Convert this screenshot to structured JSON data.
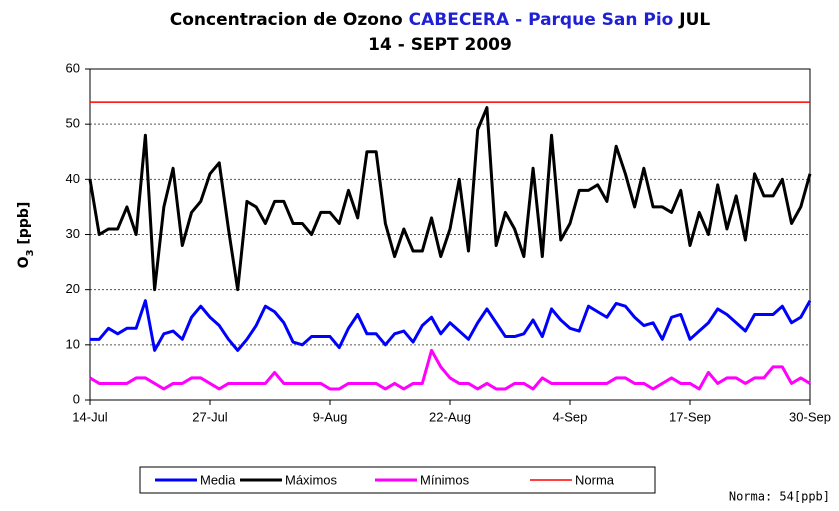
{
  "chart_data": {
    "type": "line",
    "title_parts": [
      "Concentracion de Ozono ",
      "CABECERA - Parque San Pio",
      " JUL",
      "14 - SEPT 2009"
    ],
    "title_colors": [
      "#000000",
      "#1f1fd6",
      "#000000",
      "#000000"
    ],
    "y_label_parts": [
      "O",
      "3",
      " [ppb]"
    ],
    "annotation": "Norma: 54[ppb]",
    "categories": [
      "14-Jul",
      null,
      null,
      null,
      null,
      null,
      null,
      null,
      null,
      null,
      null,
      null,
      null,
      "27-Jul",
      null,
      null,
      null,
      null,
      null,
      null,
      null,
      null,
      null,
      null,
      null,
      null,
      "9-Aug",
      null,
      null,
      null,
      null,
      null,
      null,
      null,
      null,
      null,
      null,
      null,
      null,
      "22-Aug",
      null,
      null,
      null,
      null,
      null,
      null,
      null,
      null,
      null,
      null,
      null,
      null,
      "4-Sep",
      null,
      null,
      null,
      null,
      null,
      null,
      null,
      null,
      null,
      null,
      null,
      null,
      "17-Sep",
      null,
      null,
      null,
      null,
      null,
      null,
      null,
      null,
      null,
      null,
      null,
      null,
      "30-Sep"
    ],
    "series": [
      {
        "name": "Media",
        "color": "#0000ff",
        "values": [
          11,
          11,
          13,
          12,
          13,
          13,
          18,
          9,
          12,
          12.5,
          11,
          15,
          17,
          15,
          13.5,
          11,
          9,
          11,
          13.5,
          17,
          16,
          14,
          10.5,
          10,
          11.5,
          11.5,
          11.5,
          9.5,
          13,
          15.5,
          12,
          12,
          10,
          12,
          12.5,
          10.5,
          13.5,
          15,
          12,
          14,
          12.5,
          11,
          14,
          16.5,
          14,
          11.5,
          11.5,
          12,
          14.5,
          11.5,
          16.5,
          14.5,
          13,
          12.5,
          17,
          16,
          15,
          17.5,
          17,
          15,
          13.5,
          14,
          11,
          15,
          15.5,
          11,
          12.5,
          14,
          16.5,
          15.5,
          14,
          12.5,
          15.5,
          15.5,
          15.5,
          17,
          14,
          15,
          18
        ]
      },
      {
        "name": "Máximos",
        "color": "#000000",
        "values": [
          40,
          30,
          31,
          31,
          35,
          30,
          48,
          20,
          35,
          42,
          28,
          34,
          36,
          41,
          43,
          31,
          20,
          36,
          35,
          32,
          36,
          36,
          32,
          32,
          30,
          34,
          34,
          32,
          38,
          33,
          45,
          45,
          32,
          26,
          31,
          27,
          27,
          33,
          26,
          31,
          40,
          27,
          49,
          53,
          28,
          34,
          31,
          26,
          42,
          26,
          48,
          29,
          32,
          38,
          38,
          39,
          36,
          46,
          41,
          35,
          42,
          35,
          35,
          34,
          38,
          28,
          34,
          30,
          39,
          31,
          37,
          29,
          41,
          37,
          37,
          40,
          32,
          35,
          41
        ]
      },
      {
        "name": "Mínimos",
        "color": "#ff00ff",
        "values": [
          4,
          3,
          3,
          3,
          3,
          4,
          4,
          3,
          2,
          3,
          3,
          4,
          4,
          3,
          2,
          3,
          3,
          3,
          3,
          3,
          5,
          3,
          3,
          3,
          3,
          3,
          2,
          2,
          3,
          3,
          3,
          3,
          2,
          3,
          2,
          3,
          3,
          9,
          6,
          4,
          3,
          3,
          2,
          3,
          2,
          2,
          3,
          3,
          2,
          4,
          3,
          3,
          3,
          3,
          3,
          3,
          3,
          4,
          4,
          3,
          3,
          2,
          3,
          4,
          3,
          3,
          2,
          5,
          3,
          4,
          4,
          3,
          4,
          4,
          6,
          6,
          3,
          4,
          3
        ]
      },
      {
        "name": "Norma",
        "color": "#ff0000",
        "values": [
          54,
          54,
          54,
          54,
          54,
          54,
          54,
          54,
          54,
          54,
          54,
          54,
          54,
          54,
          54,
          54,
          54,
          54,
          54,
          54,
          54,
          54,
          54,
          54,
          54,
          54,
          54,
          54,
          54,
          54,
          54,
          54,
          54,
          54,
          54,
          54,
          54,
          54,
          54,
          54,
          54,
          54,
          54,
          54,
          54,
          54,
          54,
          54,
          54,
          54,
          54,
          54,
          54,
          54,
          54,
          54,
          54,
          54,
          54,
          54,
          54,
          54,
          54,
          54,
          54,
          54,
          54,
          54,
          54,
          54,
          54,
          54,
          54,
          54,
          54,
          54,
          54,
          54,
          54
        ]
      }
    ],
    "ylim": [
      0,
      60
    ],
    "yticks": [
      0,
      10,
      20,
      30,
      40,
      50,
      60
    ],
    "grid": true,
    "legend": "bottom"
  }
}
